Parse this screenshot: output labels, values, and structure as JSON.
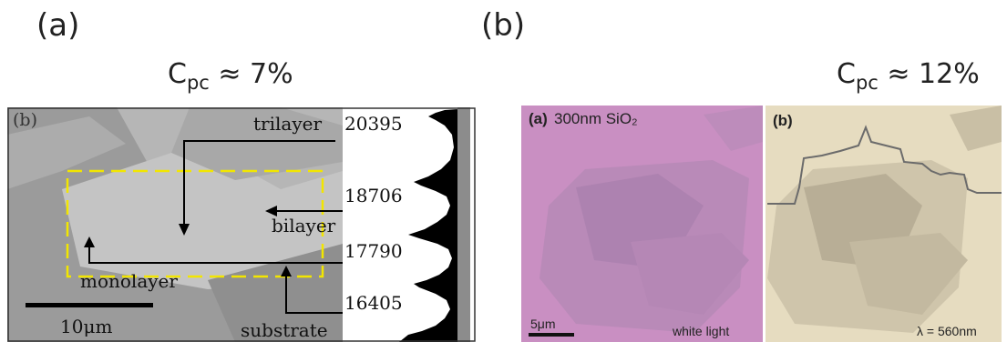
{
  "panel_a": {
    "label": "(a)",
    "cpc": {
      "base": "C",
      "sub": "pc",
      "rest": " ≈ 7%"
    },
    "inner_label": "(b)",
    "layers": {
      "trilayer": "trilayer",
      "bilayer": "bilayer",
      "monolayer": "monolayer",
      "substrate": "substrate"
    },
    "values": {
      "trilayer": "20395",
      "bilayer": "18706",
      "monolayer": "17790",
      "substrate": "16405"
    },
    "scale_bar": "10μm"
  },
  "panel_b": {
    "label": "(b)",
    "cpc": {
      "base": "C",
      "sub": "pc",
      "rest": " ≈ 12%"
    },
    "left_image": {
      "label": "(a)",
      "title": "300nm SiO₂",
      "scale_bar": "5μm",
      "caption": "white light"
    },
    "right_image": {
      "label": "(b)",
      "caption": "λ = 560nm"
    }
  },
  "colors": {
    "sem_background": "#9b9b9b",
    "dashed_box": "#f2e600",
    "pink_image": "#c98fc2",
    "tan_image": "#e6dcc0"
  }
}
